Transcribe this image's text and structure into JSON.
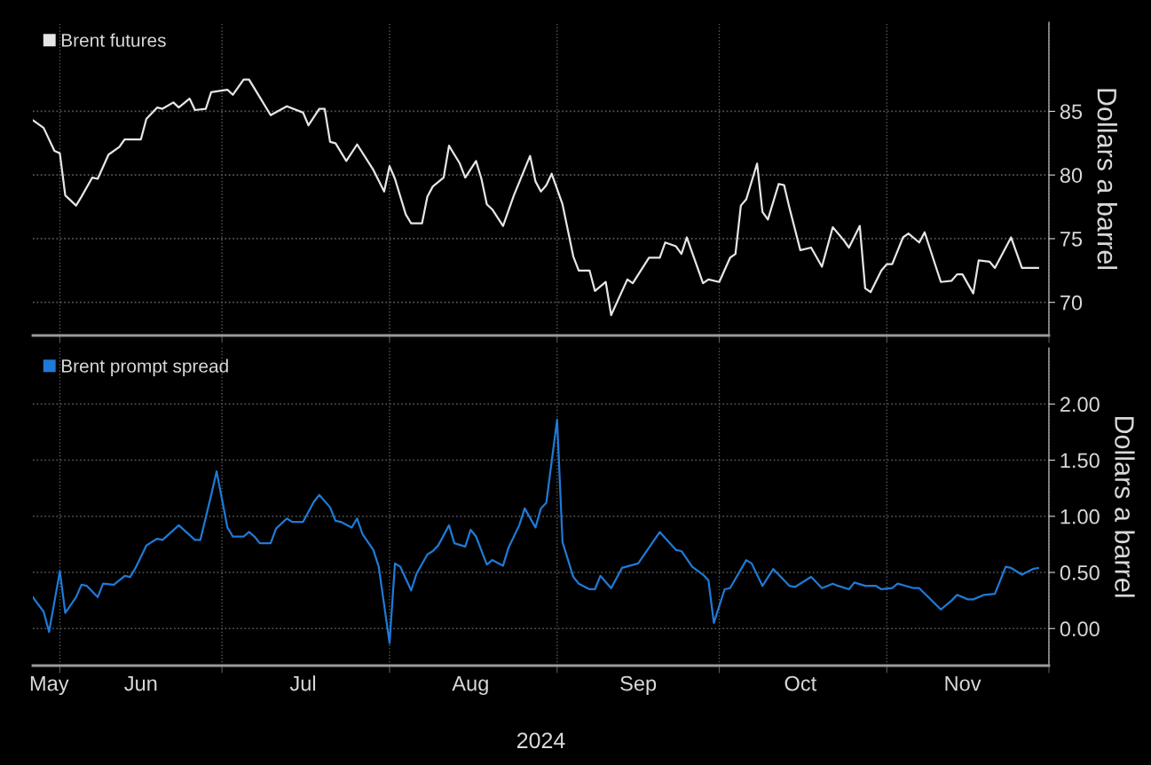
{
  "chart_data": [
    {
      "type": "line",
      "ylabel": "Dollars a barrel",
      "legend": "top left",
      "grid": true,
      "tick_labels": "y",
      "line_style": "solid",
      "xlim": [
        "2024-05-27",
        "2024-12-01"
      ],
      "xticks": [
        {
          "value": "2024-06-01",
          "label": null
        },
        {
          "value": "2024-07-01",
          "label": null
        },
        {
          "value": "2024-08-01",
          "label": null
        },
        {
          "value": "2024-09-01",
          "label": null
        },
        {
          "value": "2024-10-01",
          "label": null
        },
        {
          "value": "2024-11-01",
          "label": null
        },
        {
          "value": "2024-12-01",
          "label": null
        }
      ],
      "ylim": [
        67.4,
        92.0
      ],
      "yticks": [
        70,
        75,
        80,
        85
      ],
      "series": [
        {
          "name": "Brent futures",
          "color": "#e6e6e6",
          "x": [
            "2024-05-27",
            "2024-05-29",
            "2024-05-31",
            "2024-06-01",
            "2024-06-02",
            "2024-06-04",
            "2024-06-05",
            "2024-06-07",
            "2024-06-08",
            "2024-06-10",
            "2024-06-12",
            "2024-06-13",
            "2024-06-16",
            "2024-06-17",
            "2024-06-19",
            "2024-06-20",
            "2024-06-22",
            "2024-06-23",
            "2024-06-25",
            "2024-06-26",
            "2024-06-28",
            "2024-06-29",
            "2024-07-02",
            "2024-07-03",
            "2024-07-05",
            "2024-07-06",
            "2024-07-08",
            "2024-07-10",
            "2024-07-13",
            "2024-07-16",
            "2024-07-17",
            "2024-07-19",
            "2024-07-20",
            "2024-07-21",
            "2024-07-22",
            "2024-07-24",
            "2024-07-26",
            "2024-07-29",
            "2024-07-31",
            "2024-08-01",
            "2024-08-02",
            "2024-08-04",
            "2024-08-05",
            "2024-08-07",
            "2024-08-08",
            "2024-08-09",
            "2024-08-11",
            "2024-08-12",
            "2024-08-14",
            "2024-08-15",
            "2024-08-17",
            "2024-08-18",
            "2024-08-19",
            "2024-08-20",
            "2024-08-22",
            "2024-08-24",
            "2024-08-27",
            "2024-08-28",
            "2024-08-29",
            "2024-08-30",
            "2024-08-31",
            "2024-09-02",
            "2024-09-04",
            "2024-09-05",
            "2024-09-07",
            "2024-09-08",
            "2024-09-10",
            "2024-09-11",
            "2024-09-14",
            "2024-09-15",
            "2024-09-18",
            "2024-09-20",
            "2024-09-21",
            "2024-09-23",
            "2024-09-24",
            "2024-09-25",
            "2024-09-28",
            "2024-09-29",
            "2024-10-01",
            "2024-10-03",
            "2024-10-04",
            "2024-10-05",
            "2024-10-06",
            "2024-10-08",
            "2024-10-09",
            "2024-10-10",
            "2024-10-12",
            "2024-10-13",
            "2024-10-14",
            "2024-10-16",
            "2024-10-18",
            "2024-10-20",
            "2024-10-22",
            "2024-10-24",
            "2024-10-25",
            "2024-10-27",
            "2024-10-28",
            "2024-10-29",
            "2024-10-31",
            "2024-11-01",
            "2024-11-02",
            "2024-11-04",
            "2024-11-05",
            "2024-11-07",
            "2024-11-08",
            "2024-11-11",
            "2024-11-13",
            "2024-11-14",
            "2024-11-15",
            "2024-11-17",
            "2024-11-18",
            "2024-11-20",
            "2024-11-21",
            "2024-11-24",
            "2024-11-26",
            "2024-11-29"
          ],
          "values": [
            84.3,
            83.7,
            81.9,
            81.7,
            78.4,
            77.6,
            78.3,
            79.8,
            79.7,
            81.6,
            82.2,
            82.8,
            82.8,
            84.4,
            85.3,
            85.2,
            85.7,
            85.3,
            86.0,
            85.1,
            85.2,
            86.5,
            86.7,
            86.3,
            87.5,
            87.5,
            86.1,
            84.7,
            85.4,
            84.9,
            83.9,
            85.2,
            85.2,
            82.6,
            82.5,
            81.1,
            82.4,
            80.4,
            78.7,
            80.7,
            79.7,
            76.9,
            76.2,
            76.2,
            78.3,
            79.1,
            79.8,
            82.3,
            80.9,
            79.8,
            81.1,
            79.7,
            77.7,
            77.3,
            76.0,
            78.4,
            81.5,
            79.5,
            78.7,
            79.2,
            80.1,
            77.7,
            73.6,
            72.5,
            72.5,
            70.9,
            71.6,
            69.0,
            71.8,
            71.5,
            73.5,
            73.5,
            74.7,
            74.4,
            73.8,
            75.1,
            71.5,
            71.8,
            71.6,
            73.5,
            73.8,
            77.6,
            78.1,
            80.9,
            77.1,
            76.5,
            79.3,
            79.2,
            77.4,
            74.1,
            74.3,
            72.8,
            75.9,
            74.9,
            74.3,
            76.0,
            71.1,
            70.8,
            72.5,
            73.0,
            73.0,
            75.1,
            75.4,
            74.7,
            75.5,
            71.6,
            71.7,
            72.2,
            72.2,
            70.7,
            73.3,
            73.2,
            72.7,
            75.1,
            72.7,
            72.7
          ]
        }
      ]
    },
    {
      "type": "line",
      "ylabel": "Dollars a barrel",
      "xlabel": "2024",
      "legend": "top left",
      "grid": true,
      "line_style": "solid",
      "xlim": [
        "2024-05-27",
        "2024-12-01"
      ],
      "xticks": [
        {
          "value": "2024-06-01",
          "label": null
        },
        {
          "value": "2024-07-01",
          "label": null
        },
        {
          "value": "2024-08-01",
          "label": null
        },
        {
          "value": "2024-09-01",
          "label": null
        },
        {
          "value": "2024-10-01",
          "label": null
        },
        {
          "value": "2024-11-01",
          "label": null
        },
        {
          "value": "2024-12-01",
          "label": null
        },
        {
          "value": "2024-05-30",
          "label": "May"
        },
        {
          "value": "2024-06-16",
          "label": "Jun"
        },
        {
          "value": "2024-07-16",
          "label": "Jul"
        },
        {
          "value": "2024-08-16",
          "label": "Aug"
        },
        {
          "value": "2024-09-16",
          "label": "Sep"
        },
        {
          "value": "2024-10-16",
          "label": "Oct"
        },
        {
          "value": "2024-11-15",
          "label": "Nov"
        }
      ],
      "ylim": [
        -0.33,
        2.5
      ],
      "yticks": [
        {
          "value": 0,
          "label": "0.00"
        },
        {
          "value": 0.5,
          "label": "0.50"
        },
        {
          "value": 1,
          "label": "1.00"
        },
        {
          "value": 1.5,
          "label": "1.50"
        },
        {
          "value": 2,
          "label": "2.00"
        }
      ],
      "series": [
        {
          "name": "Brent prompt spread",
          "color": "#1f7ad6",
          "x": [
            "2024-05-27",
            "2024-05-29",
            "2024-05-30",
            "2024-06-01",
            "2024-06-02",
            "2024-06-04",
            "2024-06-05",
            "2024-06-06",
            "2024-06-08",
            "2024-06-09",
            "2024-06-11",
            "2024-06-13",
            "2024-06-14",
            "2024-06-15",
            "2024-06-17",
            "2024-06-19",
            "2024-06-20",
            "2024-06-23",
            "2024-06-26",
            "2024-06-27",
            "2024-06-29",
            "2024-06-30",
            "2024-07-02",
            "2024-07-03",
            "2024-07-05",
            "2024-07-06",
            "2024-07-07",
            "2024-07-08",
            "2024-07-10",
            "2024-07-11",
            "2024-07-13",
            "2024-07-14",
            "2024-07-16",
            "2024-07-18",
            "2024-07-19",
            "2024-07-21",
            "2024-07-22",
            "2024-07-23",
            "2024-07-25",
            "2024-07-26",
            "2024-07-27",
            "2024-07-29",
            "2024-07-30",
            "2024-08-01",
            "2024-08-02",
            "2024-08-03",
            "2024-08-05",
            "2024-08-06",
            "2024-08-08",
            "2024-08-09",
            "2024-08-10",
            "2024-08-12",
            "2024-08-13",
            "2024-08-15",
            "2024-08-16",
            "2024-08-17",
            "2024-08-19",
            "2024-08-20",
            "2024-08-22",
            "2024-08-23",
            "2024-08-25",
            "2024-08-26",
            "2024-08-28",
            "2024-08-29",
            "2024-08-30",
            "2024-09-01",
            "2024-09-02",
            "2024-09-04",
            "2024-09-05",
            "2024-09-07",
            "2024-09-08",
            "2024-09-09",
            "2024-09-11",
            "2024-09-13",
            "2024-09-16",
            "2024-09-18",
            "2024-09-20",
            "2024-09-23",
            "2024-09-24",
            "2024-09-26",
            "2024-09-28",
            "2024-09-29",
            "2024-09-30",
            "2024-10-02",
            "2024-10-03",
            "2024-10-06",
            "2024-10-07",
            "2024-10-09",
            "2024-10-11",
            "2024-10-14",
            "2024-10-15",
            "2024-10-18",
            "2024-10-20",
            "2024-10-22",
            "2024-10-23",
            "2024-10-25",
            "2024-10-26",
            "2024-10-28",
            "2024-10-30",
            "2024-10-31",
            "2024-11-02",
            "2024-11-03",
            "2024-11-06",
            "2024-11-07",
            "2024-11-11",
            "2024-11-13",
            "2024-11-14",
            "2024-11-16",
            "2024-11-17",
            "2024-11-19",
            "2024-11-21",
            "2024-11-23",
            "2024-11-24",
            "2024-11-26",
            "2024-11-28",
            "2024-11-29"
          ],
          "values": [
            0.28,
            0.15,
            -0.03,
            0.51,
            0.14,
            0.28,
            0.39,
            0.38,
            0.28,
            0.4,
            0.39,
            0.47,
            0.46,
            0.54,
            0.74,
            0.8,
            0.79,
            0.92,
            0.79,
            0.79,
            1.19,
            1.4,
            0.9,
            0.82,
            0.82,
            0.86,
            0.82,
            0.76,
            0.76,
            0.89,
            0.98,
            0.95,
            0.95,
            1.13,
            1.19,
            1.08,
            0.96,
            0.95,
            0.9,
            0.98,
            0.84,
            0.7,
            0.55,
            -0.13,
            0.58,
            0.55,
            0.34,
            0.49,
            0.66,
            0.69,
            0.74,
            0.92,
            0.76,
            0.73,
            0.88,
            0.82,
            0.57,
            0.61,
            0.56,
            0.72,
            0.92,
            1.07,
            0.9,
            1.07,
            1.12,
            1.86,
            0.77,
            0.46,
            0.4,
            0.35,
            0.35,
            0.47,
            0.36,
            0.54,
            0.58,
            0.72,
            0.86,
            0.7,
            0.69,
            0.55,
            0.48,
            0.43,
            0.05,
            0.35,
            0.36,
            0.61,
            0.58,
            0.38,
            0.53,
            0.38,
            0.37,
            0.46,
            0.36,
            0.4,
            0.38,
            0.35,
            0.41,
            0.38,
            0.38,
            0.35,
            0.36,
            0.4,
            0.36,
            0.36,
            0.17,
            0.25,
            0.3,
            0.26,
            0.26,
            0.3,
            0.31,
            0.55,
            0.54,
            0.48,
            0.53,
            0.54
          ]
        }
      ]
    }
  ]
}
